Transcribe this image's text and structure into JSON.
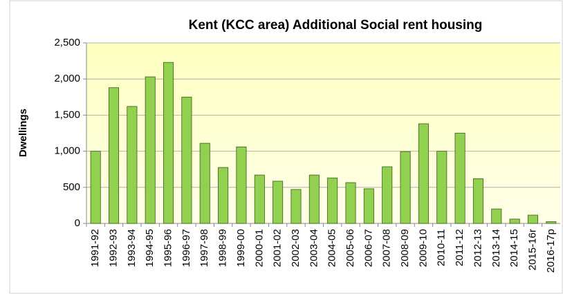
{
  "chart_data": {
    "type": "bar",
    "title": "Kent (KCC area) Additional Social rent housing",
    "y_label": "Dwellings",
    "categories": [
      "1991-92",
      "1992-93",
      "1993-94",
      "1994-95",
      "1995-96",
      "1996-97",
      "1997-98",
      "1998-99",
      "1999-00",
      "2000-01",
      "2001-02",
      "2002-03",
      "2003-04",
      "2004-05",
      "2005-06",
      "2006-07",
      "2007-08",
      "2008-09",
      "2009-10",
      "2010-11",
      "2011-12",
      "2012-13",
      "2013-14",
      "2014-15",
      "2015-16r",
      "2016-17p"
    ],
    "values": [
      1000,
      1880,
      1620,
      2030,
      2230,
      1750,
      1110,
      775,
      1060,
      670,
      585,
      470,
      670,
      630,
      565,
      480,
      785,
      995,
      1380,
      1000,
      1250,
      620,
      200,
      60,
      115,
      25
    ],
    "color": "#92d050",
    "ylim": [
      0,
      2500
    ],
    "yticks": [
      0,
      500,
      {
        "value": 1000,
        "label": "1,000"
      },
      {
        "value": 1500,
        "label": "1,500"
      },
      {
        "value": 2000,
        "label": "2,000"
      },
      {
        "value": 2500,
        "label": "2,500"
      }
    ],
    "grid": true
  }
}
